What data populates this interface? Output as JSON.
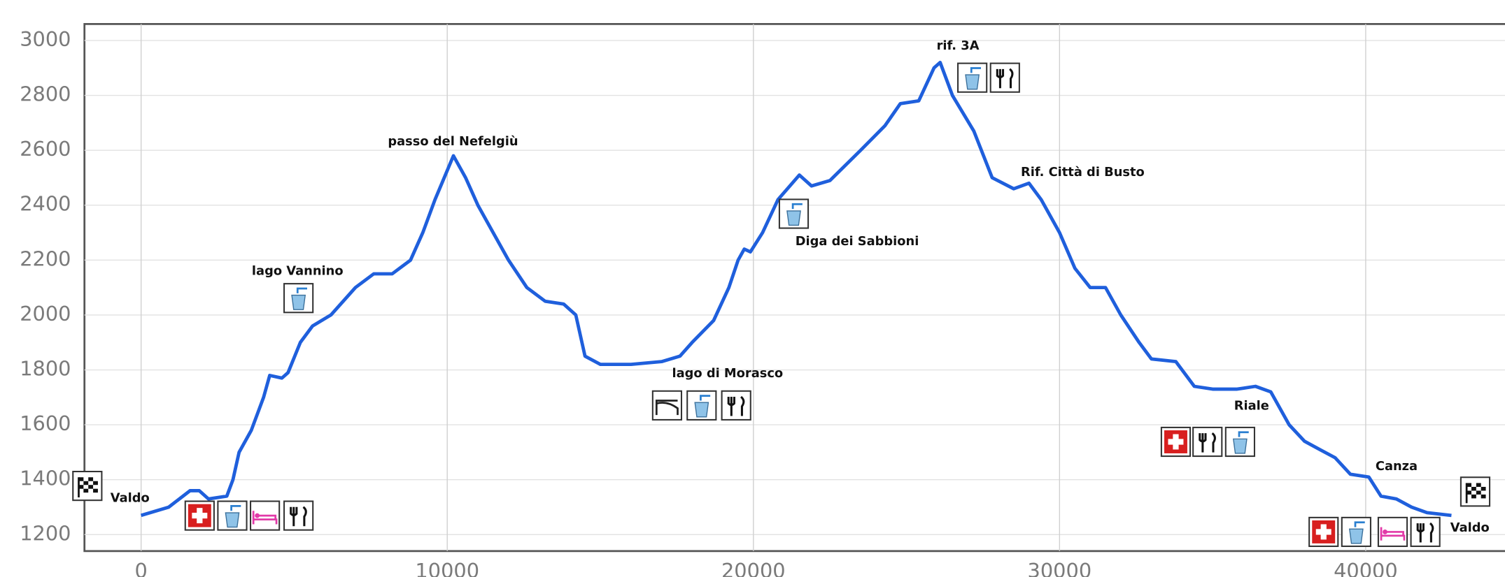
{
  "chart_data": {
    "type": "line",
    "color": "#1f5fdc",
    "grid": true,
    "xlim": [
      -1850,
      44550
    ],
    "ylim": [
      1140,
      3060
    ],
    "xticks": [
      0,
      10000,
      20000,
      30000,
      40000
    ],
    "yticks": [
      1200,
      1400,
      1600,
      1800,
      2000,
      2200,
      2400,
      2600,
      2800,
      3000
    ],
    "x": [
      0,
      900,
      1600,
      1900,
      2200,
      2800,
      3000,
      3200,
      3600,
      4000,
      4200,
      4600,
      4800,
      5200,
      5600,
      6200,
      7000,
      7600,
      8200,
      8800,
      9200,
      9600,
      10200,
      10600,
      11000,
      11500,
      12000,
      12600,
      13200,
      13800,
      14200,
      14500,
      15000,
      16000,
      17000,
      17600,
      18000,
      18700,
      19200,
      19500,
      19700,
      19900,
      20300,
      20800,
      21500,
      21900,
      22500,
      23500,
      24300,
      24800,
      25400,
      25900,
      26100,
      26500,
      27200,
      27800,
      28500,
      29000,
      29400,
      30000,
      30500,
      31000,
      31500,
      32000,
      32600,
      33000,
      33800,
      34400,
      35000,
      35800,
      36400,
      36900,
      37500,
      38000,
      38500,
      39000,
      39500,
      40100,
      40500,
      41000,
      41500,
      42000,
      42800
    ],
    "values": [
      1270,
      1300,
      1360,
      1360,
      1330,
      1340,
      1400,
      1500,
      1580,
      1700,
      1780,
      1770,
      1790,
      1900,
      1960,
      2000,
      2100,
      2150,
      2150,
      2200,
      2300,
      2420,
      2580,
      2500,
      2400,
      2300,
      2200,
      2100,
      2050,
      2040,
      2000,
      1850,
      1820,
      1820,
      1830,
      1850,
      1900,
      1980,
      2100,
      2200,
      2240,
      2230,
      2300,
      2420,
      2510,
      2470,
      2490,
      2600,
      2690,
      2770,
      2780,
      2900,
      2920,
      2800,
      2670,
      2500,
      2460,
      2480,
      2420,
      2300,
      2170,
      2100,
      2100,
      2000,
      1900,
      1840,
      1830,
      1740,
      1730,
      1730,
      1740,
      1720,
      1600,
      1540,
      1510,
      1480,
      1420,
      1410,
      1340,
      1330,
      1300,
      1280,
      1270
    ],
    "annotations": [
      "Valdo",
      "lago Vannino",
      "passo del Nefelgiù",
      "lago di Morasco",
      "Diga dei Sabbioni",
      "rif. 3A",
      "Rif. Città di Busto",
      "Riale",
      "Canza",
      "Valdo"
    ]
  }
}
